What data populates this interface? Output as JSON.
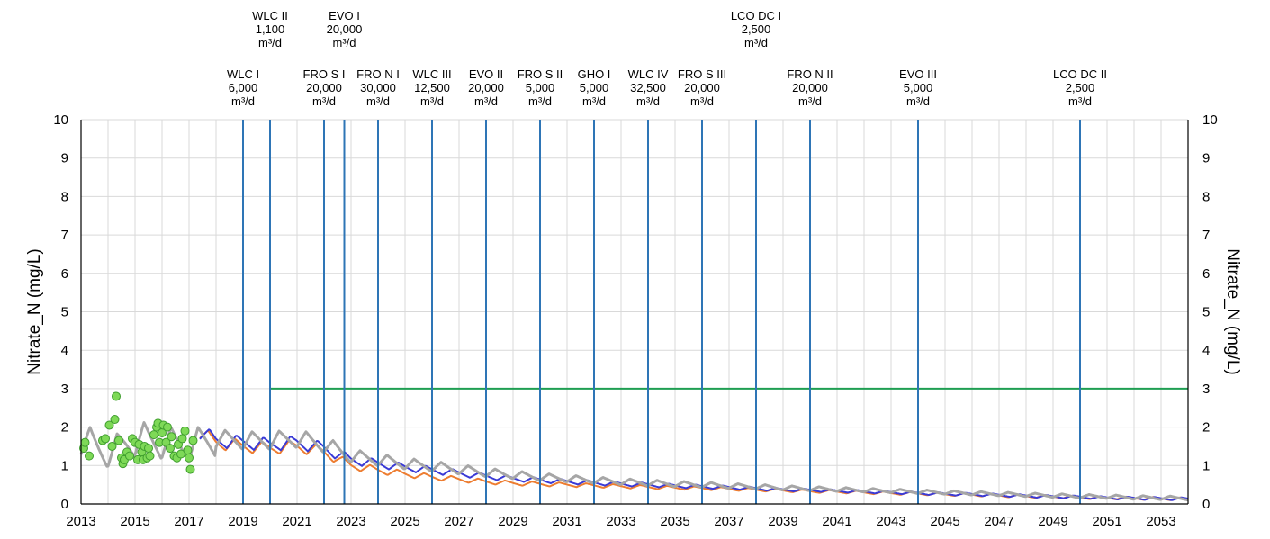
{
  "chart_data": {
    "type": "line",
    "title": "",
    "xlabel": "",
    "ylabel": "Nitrate_N (mg/L)",
    "ylabel_right": "Nitrate_N (mg/L)",
    "xlim": [
      2013,
      2054
    ],
    "ylim": [
      0,
      10
    ],
    "x_ticks": [
      2013,
      2015,
      2017,
      2019,
      2021,
      2023,
      2025,
      2027,
      2029,
      2031,
      2033,
      2035,
      2037,
      2039,
      2041,
      2043,
      2045,
      2047,
      2049,
      2051,
      2053
    ],
    "y_ticks": [
      0,
      1,
      2,
      3,
      4,
      5,
      6,
      7,
      8,
      9,
      10
    ],
    "grid": true,
    "colors": {
      "grid": "#d9d9d9",
      "vline": "#2e75b6",
      "threshold": "#1f9e52",
      "series_blue": "#3a3ad6",
      "series_orange": "#ed7d31",
      "series_gray": "#a6a6a6",
      "observed_fill": "#7ed957",
      "observed_edge": "#3f9e2e"
    },
    "threshold": {
      "y": 3,
      "x_start": 2020,
      "x_end": 2054
    },
    "series": [
      {
        "key": "blue",
        "values": [
          [
            2017.4,
            1.9
          ],
          [
            2018,
            1.65
          ],
          [
            2019,
            1.6
          ],
          [
            2020,
            1.55
          ],
          [
            2021,
            1.6
          ],
          [
            2022,
            1.45
          ],
          [
            2023,
            1.15
          ],
          [
            2024,
            1.05
          ],
          [
            2025,
            0.95
          ],
          [
            2026,
            0.88
          ],
          [
            2027,
            0.8
          ],
          [
            2028,
            0.72
          ],
          [
            2029,
            0.66
          ],
          [
            2030,
            0.62
          ],
          [
            2031,
            0.58
          ],
          [
            2032,
            0.55
          ],
          [
            2033,
            0.52
          ],
          [
            2034,
            0.5
          ],
          [
            2035,
            0.47
          ],
          [
            2036,
            0.45
          ],
          [
            2037,
            0.43
          ],
          [
            2038,
            0.4
          ],
          [
            2039,
            0.37
          ],
          [
            2040,
            0.36
          ],
          [
            2041,
            0.34
          ],
          [
            2042,
            0.32
          ],
          [
            2043,
            0.3
          ],
          [
            2044,
            0.28
          ],
          [
            2045,
            0.26
          ],
          [
            2046,
            0.25
          ],
          [
            2047,
            0.23
          ],
          [
            2048,
            0.21
          ],
          [
            2049,
            0.19
          ],
          [
            2050,
            0.18
          ],
          [
            2051,
            0.16
          ],
          [
            2052,
            0.15
          ],
          [
            2053,
            0.14
          ],
          [
            2054,
            0.13
          ]
        ]
      },
      {
        "key": "orange",
        "values": [
          [
            2017.4,
            1.85
          ],
          [
            2018,
            1.6
          ],
          [
            2019,
            1.5
          ],
          [
            2020,
            1.45
          ],
          [
            2021,
            1.5
          ],
          [
            2022,
            1.35
          ],
          [
            2023,
            1.0
          ],
          [
            2024,
            0.88
          ],
          [
            2025,
            0.78
          ],
          [
            2026,
            0.7
          ],
          [
            2027,
            0.64
          ],
          [
            2028,
            0.58
          ],
          [
            2029,
            0.54
          ],
          [
            2030,
            0.52
          ],
          [
            2031,
            0.5
          ],
          [
            2032,
            0.48
          ],
          [
            2033,
            0.46
          ],
          [
            2034,
            0.44
          ],
          [
            2035,
            0.42
          ],
          [
            2036,
            0.41
          ],
          [
            2037,
            0.39
          ],
          [
            2038,
            0.37
          ],
          [
            2039,
            0.35
          ],
          [
            2040,
            0.33
          ],
          [
            2041,
            0.32
          ],
          [
            2042,
            0.3
          ],
          [
            2043,
            0.28
          ],
          [
            2044,
            0.27
          ],
          [
            2045,
            0.25
          ],
          [
            2046,
            0.24
          ],
          [
            2047,
            0.22
          ],
          [
            2048,
            0.2
          ],
          [
            2049,
            0.19
          ],
          [
            2050,
            0.17
          ],
          [
            2051,
            0.16
          ],
          [
            2052,
            0.15
          ],
          [
            2053,
            0.14
          ],
          [
            2054,
            0.13
          ]
        ]
      },
      {
        "key": "gray",
        "values": [
          [
            2013,
            1.7
          ],
          [
            2014,
            1.3
          ],
          [
            2015,
            1.7
          ],
          [
            2016,
            1.6
          ],
          [
            2017,
            1.5
          ],
          [
            2018,
            1.7
          ],
          [
            2019,
            1.65
          ],
          [
            2020,
            1.65
          ],
          [
            2021,
            1.7
          ],
          [
            2022,
            1.55
          ],
          [
            2023,
            1.25
          ],
          [
            2024,
            1.15
          ],
          [
            2025,
            1.05
          ],
          [
            2026,
            0.98
          ],
          [
            2027,
            0.9
          ],
          [
            2028,
            0.82
          ],
          [
            2029,
            0.76
          ],
          [
            2030,
            0.7
          ],
          [
            2031,
            0.66
          ],
          [
            2032,
            0.62
          ],
          [
            2033,
            0.58
          ],
          [
            2034,
            0.55
          ],
          [
            2035,
            0.52
          ],
          [
            2036,
            0.5
          ],
          [
            2037,
            0.47
          ],
          [
            2038,
            0.45
          ],
          [
            2039,
            0.42
          ],
          [
            2040,
            0.4
          ],
          [
            2041,
            0.38
          ],
          [
            2042,
            0.36
          ],
          [
            2043,
            0.34
          ],
          [
            2044,
            0.32
          ],
          [
            2045,
            0.3
          ],
          [
            2046,
            0.28
          ],
          [
            2047,
            0.26
          ],
          [
            2048,
            0.24
          ],
          [
            2049,
            0.22
          ],
          [
            2050,
            0.2
          ],
          [
            2051,
            0.19
          ],
          [
            2052,
            0.17
          ],
          [
            2053,
            0.16
          ],
          [
            2054,
            0.15
          ]
        ]
      }
    ],
    "observed": [
      [
        2013.1,
        1.45
      ],
      [
        2013.15,
        1.6
      ],
      [
        2013.3,
        1.25
      ],
      [
        2013.8,
        1.65
      ],
      [
        2013.9,
        1.7
      ],
      [
        2014.05,
        2.05
      ],
      [
        2014.15,
        1.5
      ],
      [
        2014.25,
        2.2
      ],
      [
        2014.3,
        2.8
      ],
      [
        2014.4,
        1.65
      ],
      [
        2014.5,
        1.2
      ],
      [
        2014.55,
        1.05
      ],
      [
        2014.6,
        1.15
      ],
      [
        2014.7,
        1.35
      ],
      [
        2014.8,
        1.25
      ],
      [
        2014.9,
        1.7
      ],
      [
        2015.0,
        1.6
      ],
      [
        2015.1,
        1.15
      ],
      [
        2015.15,
        1.55
      ],
      [
        2015.25,
        1.35
      ],
      [
        2015.3,
        1.15
      ],
      [
        2015.35,
        1.5
      ],
      [
        2015.45,
        1.2
      ],
      [
        2015.5,
        1.45
      ],
      [
        2015.55,
        1.25
      ],
      [
        2015.7,
        1.8
      ],
      [
        2015.8,
        2.0
      ],
      [
        2015.85,
        2.1
      ],
      [
        2015.9,
        1.6
      ],
      [
        2016.0,
        1.85
      ],
      [
        2016.05,
        2.05
      ],
      [
        2016.15,
        1.6
      ],
      [
        2016.2,
        2.0
      ],
      [
        2016.3,
        1.45
      ],
      [
        2016.35,
        1.75
      ],
      [
        2016.45,
        1.25
      ],
      [
        2016.55,
        1.2
      ],
      [
        2016.6,
        1.55
      ],
      [
        2016.7,
        1.3
      ],
      [
        2016.75,
        1.7
      ],
      [
        2016.85,
        1.9
      ],
      [
        2016.95,
        1.4
      ],
      [
        2017.0,
        1.2
      ],
      [
        2017.05,
        0.9
      ],
      [
        2017.15,
        1.65
      ]
    ],
    "vlines": [
      {
        "x": 2019.0,
        "label": [
          "WLC I",
          "6,000",
          "m³/d"
        ],
        "level": "low"
      },
      {
        "x": 2020.0,
        "label": [
          "WLC II",
          "1,100",
          "m³/d"
        ],
        "level": "high"
      },
      {
        "x": 2022.0,
        "label": [
          "FRO S I",
          "20,000",
          "m³/d"
        ],
        "level": "low"
      },
      {
        "x": 2022.75,
        "label": [
          "EVO I",
          "20,000",
          "m³/d"
        ],
        "level": "high"
      },
      {
        "x": 2024.0,
        "label": [
          "FRO N I",
          "30,000",
          "m³/d"
        ],
        "level": "low"
      },
      {
        "x": 2026.0,
        "label": [
          "WLC III",
          "12,500",
          "m³/d"
        ],
        "level": "low"
      },
      {
        "x": 2028.0,
        "label": [
          "EVO II",
          "20,000",
          "m³/d"
        ],
        "level": "low"
      },
      {
        "x": 2030.0,
        "label": [
          "FRO S II",
          "5,000",
          "m³/d"
        ],
        "level": "low"
      },
      {
        "x": 2032.0,
        "label": [
          "GHO I",
          "5,000",
          "m³/d"
        ],
        "level": "low"
      },
      {
        "x": 2034.0,
        "label": [
          "WLC IV",
          "32,500",
          "m³/d"
        ],
        "level": "low"
      },
      {
        "x": 2036.0,
        "label": [
          "FRO S III",
          "20,000",
          "m³/d"
        ],
        "level": "low"
      },
      {
        "x": 2038.0,
        "label": [
          "LCO DC I",
          "2,500",
          "m³/d"
        ],
        "level": "high"
      },
      {
        "x": 2040.0,
        "label": [
          "FRO N II",
          "20,000",
          "m³/d"
        ],
        "level": "low"
      },
      {
        "x": 2044.0,
        "label": [
          "EVO III",
          "5,000",
          "m³/d"
        ],
        "level": "low"
      },
      {
        "x": 2050.0,
        "label": [
          "LCO DC II",
          "2,500",
          "m³/d"
        ],
        "level": "low"
      }
    ]
  }
}
